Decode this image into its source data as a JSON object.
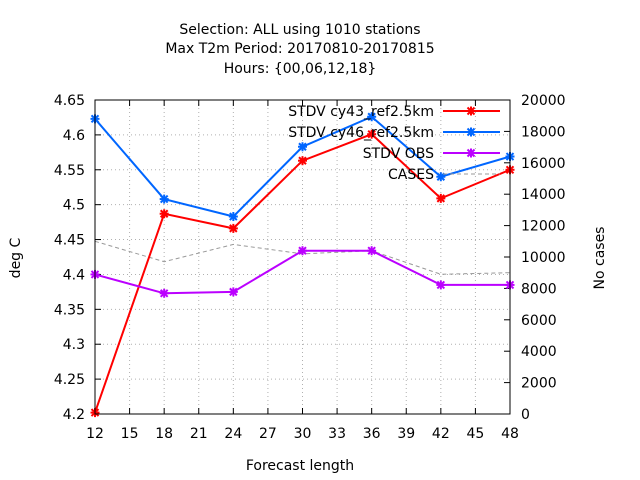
{
  "chart_data": {
    "type": "line",
    "title_lines": [
      "Selection: ALL using  1010 stations",
      "Max T2m   Period: 20170810-20170815",
      "Hours: {00,06,12,18}"
    ],
    "xlabel": "Forecast length",
    "ylabel": "deg C",
    "y2label": "No cases",
    "xlim": [
      12,
      48
    ],
    "xticks": [
      12,
      15,
      18,
      21,
      24,
      27,
      30,
      33,
      36,
      39,
      42,
      45,
      48
    ],
    "ylim": [
      4.2,
      4.65
    ],
    "yticks": [
      4.2,
      4.25,
      4.3,
      4.35,
      4.4,
      4.45,
      4.5,
      4.55,
      4.6,
      4.65
    ],
    "y2lim": [
      0,
      20000
    ],
    "y2ticks": [
      0,
      2000,
      4000,
      6000,
      8000,
      10000,
      12000,
      14000,
      16000,
      18000,
      20000
    ],
    "grid": true,
    "legend_position": "top-right",
    "x": [
      12,
      18,
      24,
      30,
      36,
      42,
      48
    ],
    "series": [
      {
        "name": "STDV cy43_ref2.5km",
        "color": "#ff0000",
        "axis": "y",
        "values": [
          4.202,
          4.487,
          4.466,
          4.563,
          4.601,
          4.509,
          4.55
        ]
      },
      {
        "name": "STDV cy46_ref2.5km",
        "color": "#0066ff",
        "axis": "y",
        "values": [
          4.623,
          4.508,
          4.483,
          4.583,
          4.626,
          4.54,
          4.569
        ]
      },
      {
        "name": "STDV OBS",
        "color": "#bb00ff",
        "axis": "y",
        "values": [
          4.4,
          4.373,
          4.375,
          4.434,
          4.434,
          4.385,
          4.385
        ]
      },
      {
        "name": "CASES",
        "color": "#999999",
        "axis": "y2",
        "values": [
          11000,
          9700,
          10800,
          10200,
          10400,
          8900,
          9000
        ]
      }
    ]
  }
}
